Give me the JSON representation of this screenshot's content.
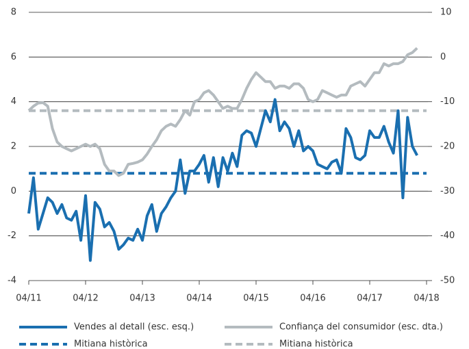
{
  "chart_data": {
    "type": "line",
    "categories": [
      "04/11",
      null,
      null,
      null,
      null,
      null,
      null,
      null,
      null,
      null,
      null,
      null,
      "04/12",
      null,
      null,
      null,
      null,
      null,
      null,
      null,
      null,
      null,
      null,
      null,
      "04/13",
      null,
      null,
      null,
      null,
      null,
      null,
      null,
      null,
      null,
      null,
      null,
      "04/14",
      null,
      null,
      null,
      null,
      null,
      null,
      null,
      null,
      null,
      null,
      null,
      "04/15",
      null,
      null,
      null,
      null,
      null,
      null,
      null,
      null,
      null,
      null,
      null,
      "04/16",
      null,
      null,
      null,
      null,
      null,
      null,
      null,
      null,
      null,
      null,
      null,
      "04/17",
      null,
      null,
      null,
      null,
      null,
      null,
      null,
      null,
      null,
      null,
      null,
      "04/18"
    ],
    "series": [
      {
        "name": "Vendes al detall (esc. esq.)",
        "color": "#1a6fb0",
        "axis": "y",
        "values": [
          -1.0,
          0.6,
          -1.7,
          -1.0,
          -0.3,
          -0.5,
          -1.0,
          -0.6,
          -1.2,
          -1.3,
          -0.9,
          -2.2,
          -0.2,
          -3.1,
          -0.5,
          -0.8,
          -1.6,
          -1.4,
          -1.8,
          -2.6,
          -2.4,
          -2.1,
          -2.2,
          -1.7,
          -2.2,
          -1.1,
          -0.6,
          -1.8,
          -1.0,
          -0.7,
          -0.3,
          0.0,
          1.4,
          -0.1,
          0.9,
          0.9,
          1.2,
          1.6,
          0.4,
          1.5,
          0.2,
          1.5,
          0.9,
          1.7,
          1.1,
          2.5,
          2.7,
          2.6,
          2.0,
          2.8,
          3.6,
          3.1,
          4.1,
          2.7,
          3.1,
          2.8,
          2.0,
          2.7,
          1.8,
          2.0,
          1.8,
          1.2,
          1.1,
          1.0,
          1.3,
          1.4,
          0.8,
          2.8,
          2.4,
          1.5,
          1.4,
          1.6,
          2.7,
          2.4,
          2.4,
          2.9,
          2.2,
          1.7,
          3.6,
          -0.3,
          3.3,
          2.0,
          1.6,
          null,
          null
        ]
      },
      {
        "name": "Confiança del consumidor (esc. dta.)",
        "color": "#b4bbbf",
        "axis": "y2",
        "values": [
          -12,
          -11,
          -10.3,
          -10.2,
          -11,
          -16,
          -19,
          -20,
          -20.5,
          -21,
          -20.5,
          -20,
          -19.5,
          -20,
          -19.5,
          -20.5,
          -24,
          -25.5,
          -25.5,
          -26.5,
          -26,
          -24,
          -23.8,
          -23.5,
          -23,
          -21.7,
          -20,
          -18.5,
          -16.5,
          -15.5,
          -15,
          -15.5,
          -14,
          -12,
          -13,
          -10,
          -9.5,
          -8,
          -7.5,
          -8.5,
          -10,
          -11.5,
          -11,
          -11.5,
          -11.5,
          -9.5,
          -7,
          -5,
          -3.5,
          -4.5,
          -5.5,
          -5.5,
          -7,
          -6.5,
          -6.5,
          -7,
          -6,
          -6,
          -7,
          -9.5,
          -10,
          -9.5,
          -7.5,
          -8,
          -8.5,
          -9,
          -8.5,
          -8.5,
          -6.5,
          -6,
          -5.5,
          -6.5,
          -5,
          -3.5,
          -3.5,
          -1.5,
          -2,
          -1.5,
          -1.5,
          -1,
          0.5,
          1,
          2,
          null,
          null
        ]
      }
    ],
    "reference_lines": [
      {
        "name": "Mitiana històrica",
        "color": "#1a6fb0",
        "axis": "y",
        "value": 0.8
      },
      {
        "name": "Mitiana històrica",
        "color": "#b4bbbf",
        "axis": "y2",
        "value": -12
      }
    ],
    "ylim": [
      -4,
      8
    ],
    "yticks": [
      -4,
      -2,
      0,
      2,
      4,
      6,
      8
    ],
    "y2lim": [
      -50,
      10
    ],
    "y2ticks": [
      -50,
      -40,
      -30,
      -20,
      -10,
      0,
      10
    ],
    "grid": true
  }
}
